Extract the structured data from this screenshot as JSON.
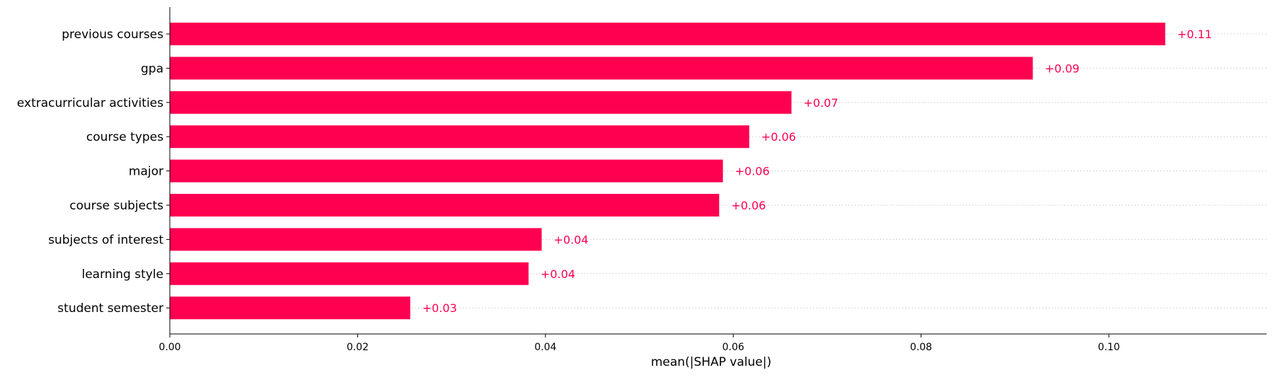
{
  "chart_data": {
    "type": "bar",
    "orientation": "horizontal",
    "categories": [
      "previous courses",
      "gpa",
      "extracurricular activities",
      "course types",
      "major",
      "course subjects",
      "subjects of interest",
      "learning style",
      "student semester"
    ],
    "values": [
      0.106,
      0.0919,
      0.0662,
      0.0617,
      0.0589,
      0.0585,
      0.0396,
      0.0382,
      0.0256
    ],
    "value_labels": [
      "+0.11",
      "+0.09",
      "+0.07",
      "+0.06",
      "+0.06",
      "+0.06",
      "+0.04",
      "+0.04",
      "+0.03"
    ],
    "xlabel": "mean(|SHAP value|)",
    "xlim": [
      0,
      0.1168
    ],
    "xticks": [
      0.0,
      0.02,
      0.04,
      0.06,
      0.08,
      0.1
    ],
    "xtick_labels": [
      "0.00",
      "0.02",
      "0.04",
      "0.06",
      "0.08",
      "0.10"
    ],
    "grid": "dotted row guides",
    "bar_color": "#ff0051",
    "label_color": "#ff0051"
  }
}
